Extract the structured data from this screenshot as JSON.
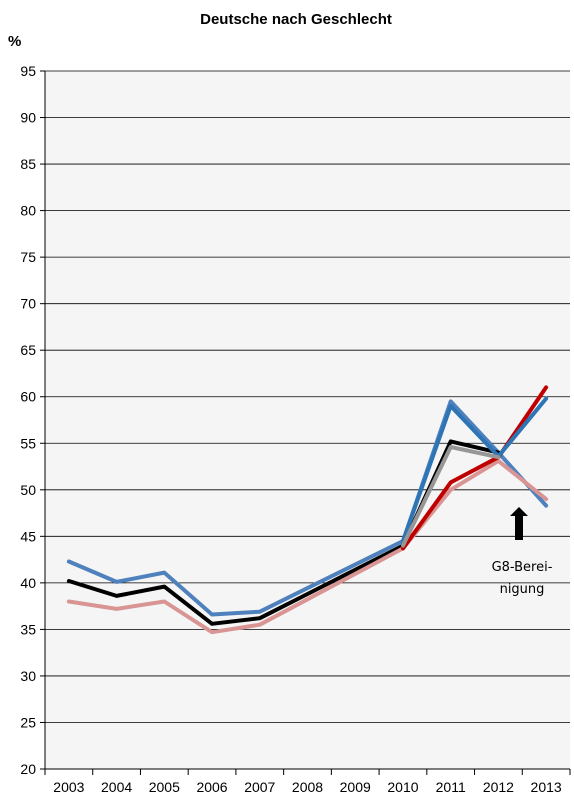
{
  "chart_data": {
    "type": "line",
    "title": "Deutsche nach Geschlecht",
    "ylabel": "%",
    "ylim": [
      20,
      95
    ],
    "yticks": [
      "20",
      "25",
      "30",
      "35",
      "40",
      "45",
      "50",
      "55",
      "60",
      "65",
      "70",
      "75",
      "80",
      "85",
      "90",
      "95"
    ],
    "categories": [
      "2003",
      "2004",
      "2005",
      "2006",
      "2007",
      "2008",
      "2009",
      "2010",
      "2011",
      "2012",
      "2013"
    ],
    "grid": true,
    "series": [
      {
        "color": "#4f81bd",
        "values": [
          42.3,
          40.1,
          41.1,
          36.6,
          36.9,
          null,
          null,
          44.5,
          59.5,
          54.0,
          48.3
        ]
      },
      {
        "color": "#000000",
        "values": [
          40.2,
          38.6,
          39.6,
          35.6,
          36.2,
          null,
          null,
          44.0,
          55.2,
          54.0,
          null
        ]
      },
      {
        "color": "#d99594",
        "values": [
          38.0,
          37.2,
          38.0,
          34.7,
          35.5,
          null,
          null,
          43.7,
          50.0,
          53.1,
          49.0
        ]
      },
      {
        "color": "#c00000",
        "values": [
          null,
          null,
          null,
          null,
          null,
          null,
          null,
          43.7,
          50.8,
          53.5,
          61.0
        ]
      },
      {
        "color": "#2e75b6",
        "values": [
          null,
          null,
          null,
          null,
          null,
          null,
          null,
          44.5,
          59.0,
          53.6,
          59.8
        ]
      },
      {
        "color": "#969696",
        "values": [
          null,
          null,
          null,
          null,
          null,
          null,
          null,
          44.0,
          54.6,
          53.5,
          null
        ]
      }
    ],
    "annotations": [
      {
        "text": "G8-Berei-"
      },
      {
        "text": "nigung"
      }
    ]
  }
}
